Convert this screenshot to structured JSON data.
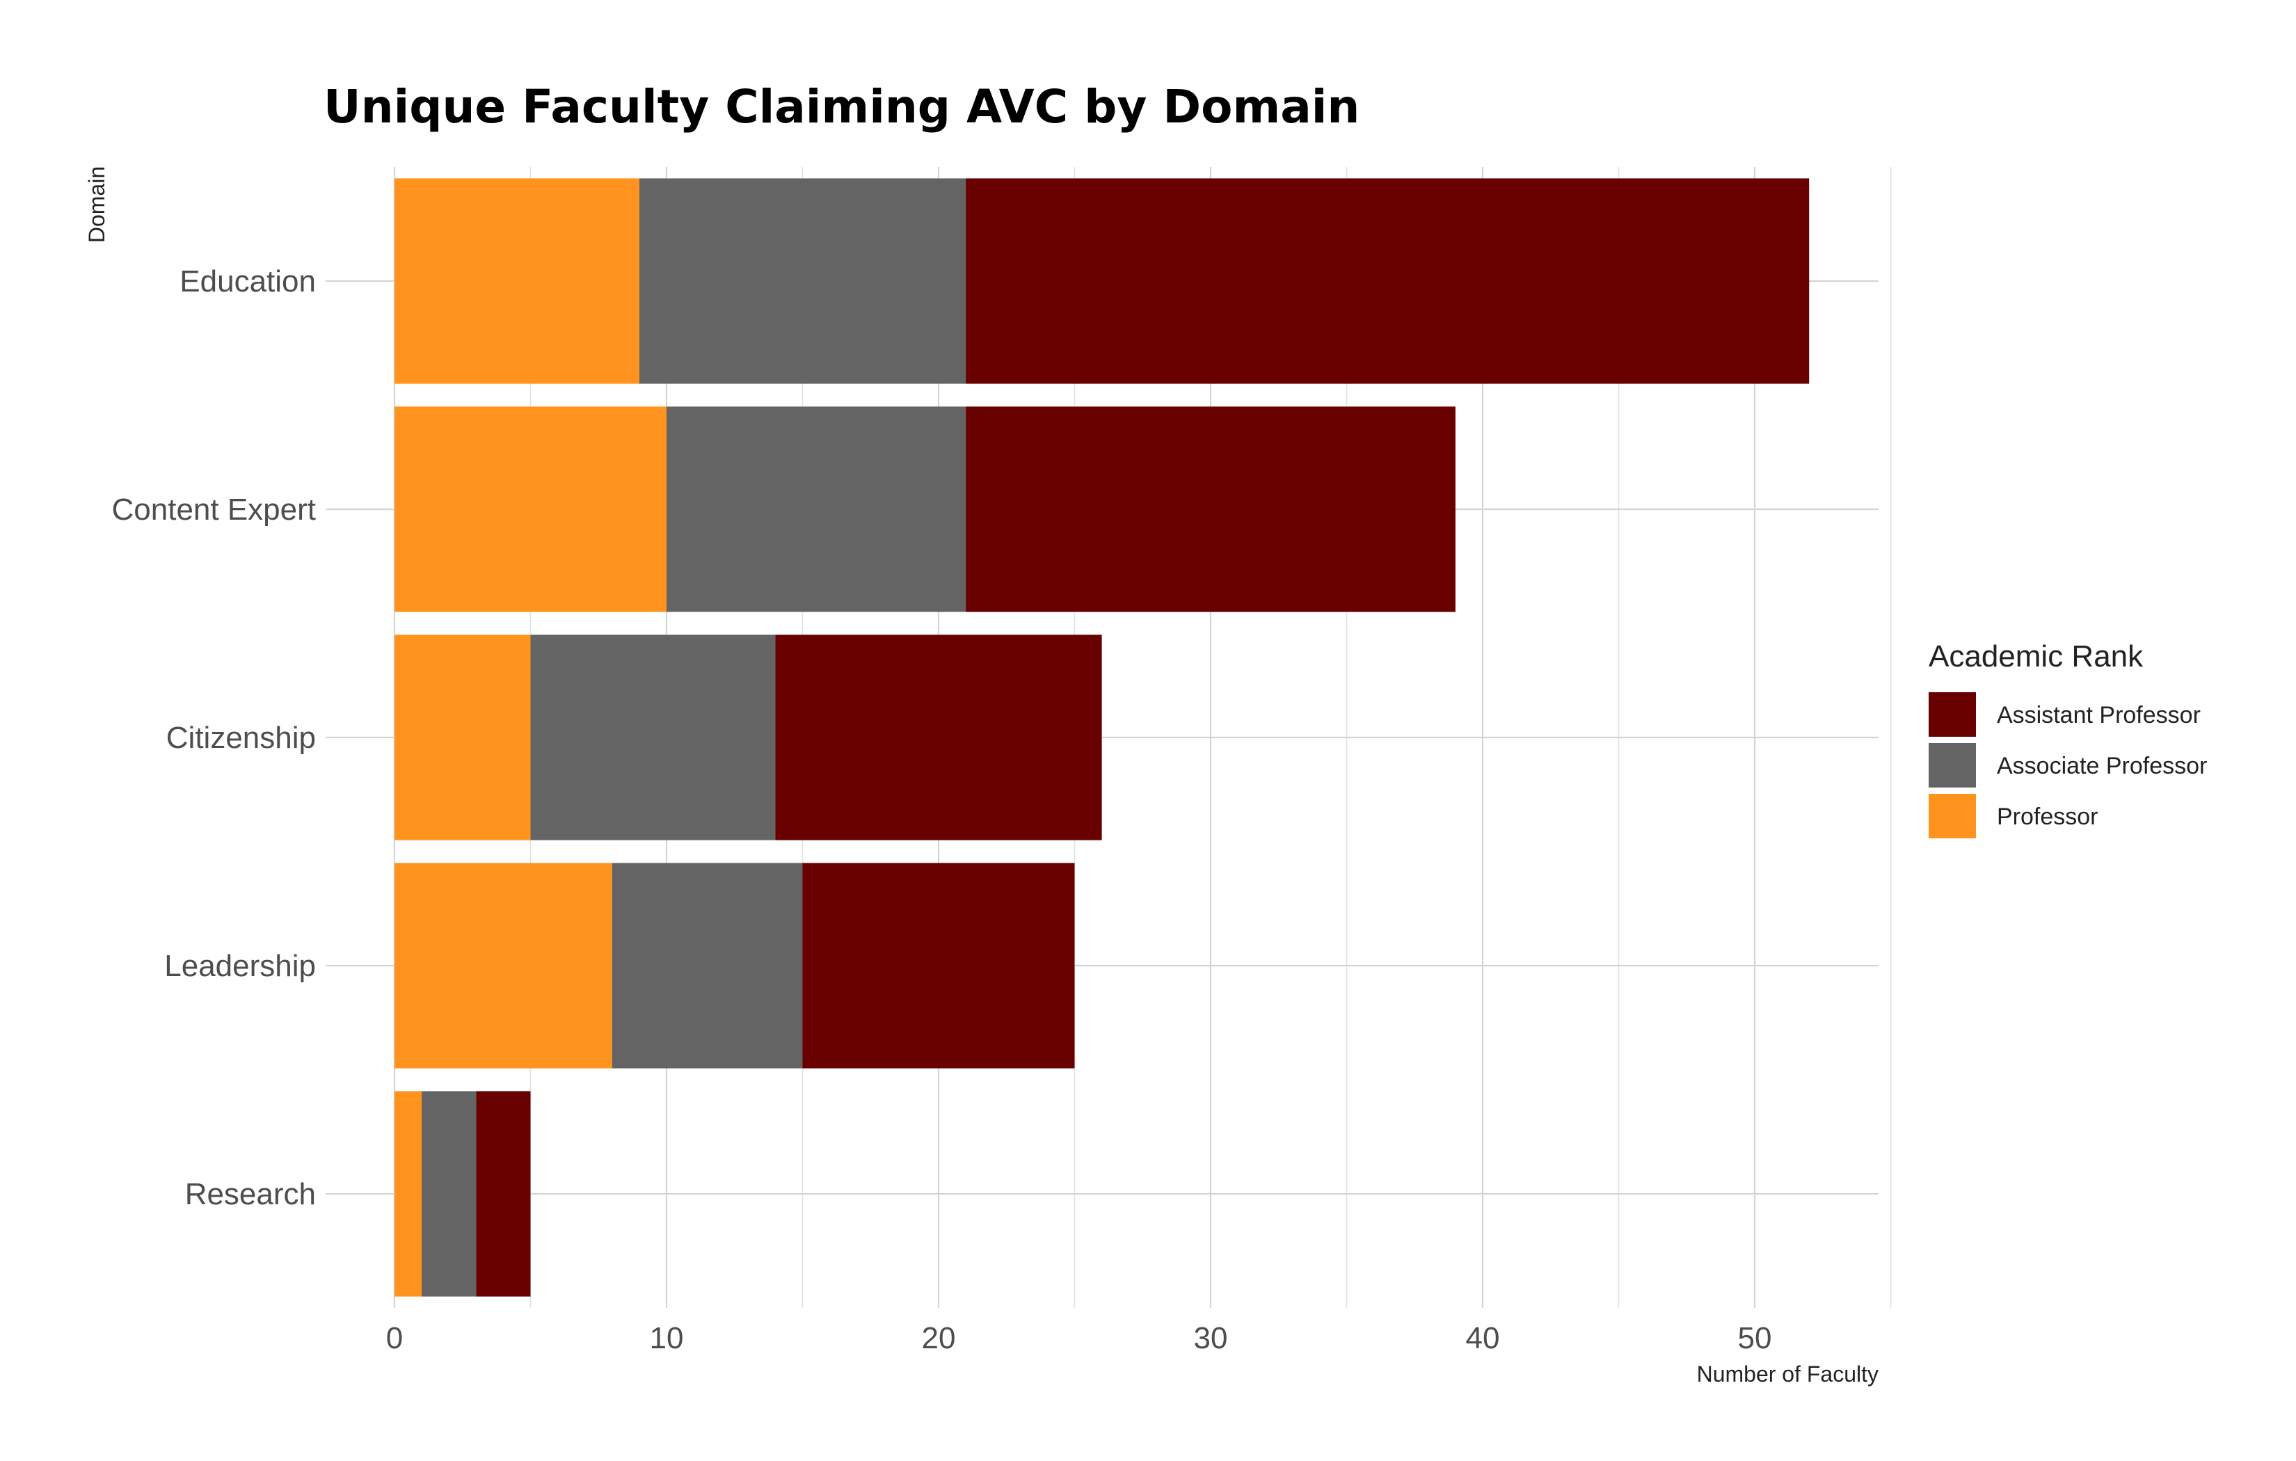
{
  "chart_data": {
    "type": "bar",
    "orientation": "horizontal",
    "stacked": true,
    "title": "Unique Faculty Claiming AVC by Domain",
    "xlabel": "Number of Faculty",
    "ylabel": "Domain",
    "categories": [
      "Education",
      "Content Expert",
      "Citizenship",
      "Leadership",
      "Research"
    ],
    "series": [
      {
        "name": "Professor",
        "color": "#ff931e",
        "values": [
          9,
          10,
          5,
          8,
          1
        ]
      },
      {
        "name": "Associate Professor",
        "color": "#646464",
        "values": [
          12,
          11,
          9,
          7,
          2
        ]
      },
      {
        "name": "Assistant Professor",
        "color": "#690000",
        "values": [
          31,
          18,
          12,
          10,
          2
        ]
      }
    ],
    "xlim": [
      0,
      55
    ],
    "xticks": [
      0,
      10,
      20,
      30,
      40,
      50
    ],
    "grid": true,
    "legend": {
      "title": "Academic Rank",
      "position": "right",
      "order": [
        "Assistant Professor",
        "Associate Professor",
        "Professor"
      ]
    }
  }
}
